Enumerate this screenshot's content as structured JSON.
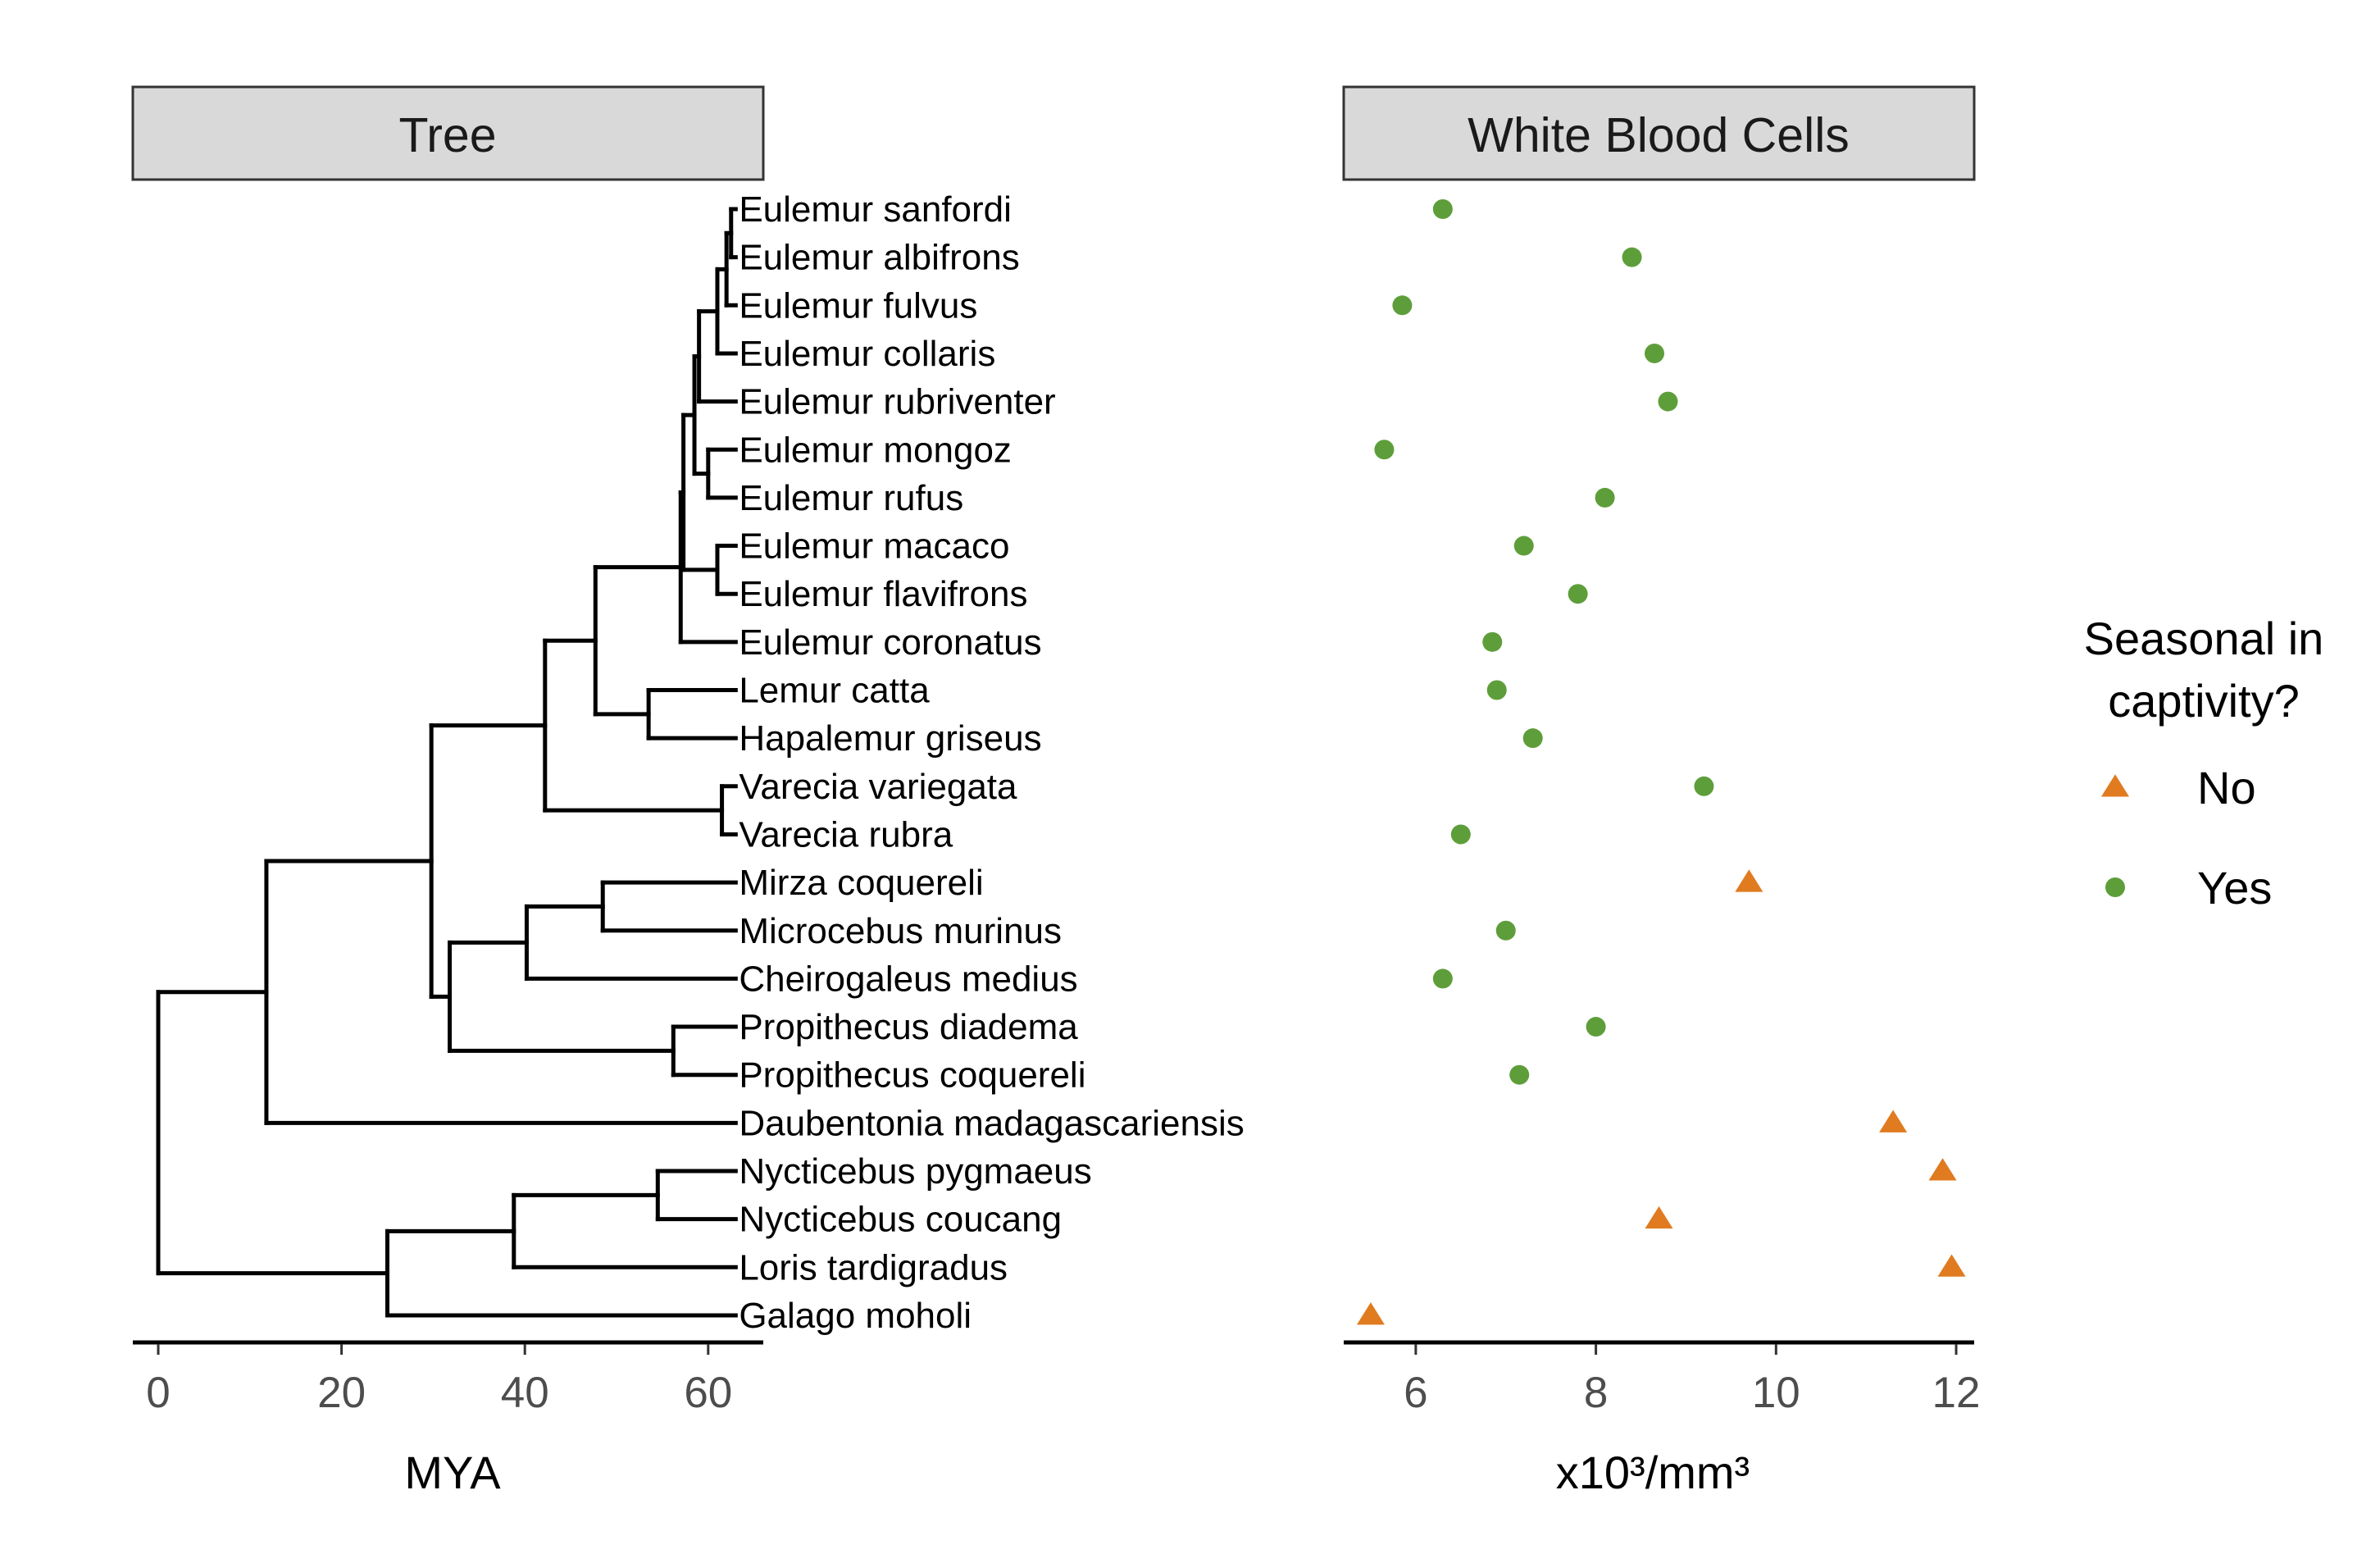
{
  "chart_data": [
    {
      "type": "tree",
      "title": "Tree",
      "xlabel": "MYA",
      "xlim": [
        -3,
        66
      ],
      "xticks": [
        0,
        20,
        40,
        60
      ],
      "tips": [
        {
          "name": "Eulemur sanfordi",
          "age": 63
        },
        {
          "name": "Eulemur albifrons",
          "age": 63
        },
        {
          "name": "Eulemur fulvus",
          "age": 63
        },
        {
          "name": "Eulemur collaris",
          "age": 63
        },
        {
          "name": "Eulemur rubriventer",
          "age": 63
        },
        {
          "name": "Eulemur mongoz",
          "age": 63
        },
        {
          "name": "Eulemur rufus",
          "age": 63
        },
        {
          "name": "Eulemur macaco",
          "age": 63
        },
        {
          "name": "Eulemur flavifrons",
          "age": 63
        },
        {
          "name": "Eulemur coronatus",
          "age": 63
        },
        {
          "name": "Lemur catta",
          "age": 63
        },
        {
          "name": "Hapalemur griseus",
          "age": 63
        },
        {
          "name": "Varecia variegata",
          "age": 63
        },
        {
          "name": "Varecia rubra",
          "age": 63
        },
        {
          "name": "Mirza coquereli",
          "age": 63
        },
        {
          "name": "Microcebus murinus",
          "age": 63
        },
        {
          "name": "Cheirogaleus medius",
          "age": 63
        },
        {
          "name": "Propithecus diadema",
          "age": 63
        },
        {
          "name": "Propithecus coquereli",
          "age": 63
        },
        {
          "name": "Daubentonia madagascariensis",
          "age": 63
        },
        {
          "name": "Nycticebus pygmaeus",
          "age": 63
        },
        {
          "name": "Nycticebus coucang",
          "age": 63
        },
        {
          "name": "Loris tardigradus",
          "age": 63
        },
        {
          "name": "Galago moholi",
          "age": 63
        }
      ],
      "nodes": [
        {
          "x": 62.5,
          "children": [
            0,
            1
          ]
        },
        {
          "x": 62.0,
          "children": [
            "n0",
            2
          ]
        },
        {
          "x": 61.0,
          "children": [
            "n1",
            3
          ]
        },
        {
          "x": 59.0,
          "children": [
            "n2",
            4
          ]
        },
        {
          "x": 60.0,
          "children": [
            5,
            6
          ]
        },
        {
          "x": 58.5,
          "children": [
            "n3",
            "n4"
          ]
        },
        {
          "x": 61.0,
          "children": [
            7,
            8
          ]
        },
        {
          "x": 57.3,
          "children": [
            "n5",
            "n6"
          ]
        },
        {
          "x": 57.0,
          "children": [
            "n7",
            9
          ]
        },
        {
          "x": 53.5,
          "children": [
            10,
            11
          ]
        },
        {
          "x": 47.7,
          "children": [
            "n8",
            "n9"
          ]
        },
        {
          "x": 61.5,
          "children": [
            12,
            13
          ]
        },
        {
          "x": 42.2,
          "children": [
            "n10",
            "n11"
          ]
        },
        {
          "x": 48.5,
          "children": [
            14,
            15
          ]
        },
        {
          "x": 40.2,
          "children": [
            "n13",
            16
          ]
        },
        {
          "x": 56.2,
          "children": [
            17,
            18
          ]
        },
        {
          "x": 31.8,
          "children": [
            "n14",
            "n15"
          ]
        },
        {
          "x": 29.8,
          "children": [
            "n12",
            "n16"
          ]
        },
        {
          "x": 11.8,
          "children": [
            "n17",
            19
          ]
        },
        {
          "x": 54.5,
          "children": [
            20,
            21
          ]
        },
        {
          "x": 38.8,
          "children": [
            "n19",
            22
          ]
        },
        {
          "x": 25.0,
          "children": [
            "n20",
            23
          ]
        },
        {
          "x": 0.0,
          "children": [
            "n18",
            "n21"
          ]
        }
      ]
    },
    {
      "type": "scatter",
      "title": "White Blood Cells",
      "xlabel": "x10³/mm³",
      "xlim": [
        5.2,
        12.2
      ],
      "xticks": [
        6,
        8,
        10,
        12
      ],
      "legend": {
        "title_line1": "Seasonal in",
        "title_line2": "captivity?",
        "position": "right"
      },
      "series": [
        {
          "name": "No",
          "shape": "triangle",
          "color": "#e07b20",
          "points": [
            {
              "species": "Mirza coquereli",
              "value": 9.7
            },
            {
              "species": "Daubentonia madagascariensis",
              "value": 11.3
            },
            {
              "species": "Nycticebus pygmaeus",
              "value": 11.85
            },
            {
              "species": "Nycticebus coucang",
              "value": 8.7
            },
            {
              "species": "Loris tardigradus",
              "value": 11.95
            },
            {
              "species": "Galago moholi",
              "value": 5.5
            }
          ]
        },
        {
          "name": "Yes",
          "shape": "circle",
          "color": "#5e9e3a",
          "points": [
            {
              "species": "Eulemur sanfordi",
              "value": 6.3
            },
            {
              "species": "Eulemur albifrons",
              "value": 8.4
            },
            {
              "species": "Eulemur fulvus",
              "value": 5.85
            },
            {
              "species": "Eulemur collaris",
              "value": 8.65
            },
            {
              "species": "Eulemur rubriventer",
              "value": 8.8
            },
            {
              "species": "Eulemur mongoz",
              "value": 5.65
            },
            {
              "species": "Eulemur rufus",
              "value": 8.1
            },
            {
              "species": "Eulemur macaco",
              "value": 7.2
            },
            {
              "species": "Eulemur flavifrons",
              "value": 7.8
            },
            {
              "species": "Eulemur coronatus",
              "value": 6.85
            },
            {
              "species": "Lemur catta",
              "value": 6.9
            },
            {
              "species": "Hapalemur griseus",
              "value": 7.3
            },
            {
              "species": "Varecia variegata",
              "value": 9.2
            },
            {
              "species": "Varecia rubra",
              "value": 6.5
            },
            {
              "species": "Microcebus murinus",
              "value": 7.0
            },
            {
              "species": "Cheirogaleus medius",
              "value": 6.3
            },
            {
              "species": "Propithecus diadema",
              "value": 8.0
            },
            {
              "species": "Propithecus coquereli",
              "value": 7.15
            }
          ]
        }
      ]
    }
  ]
}
